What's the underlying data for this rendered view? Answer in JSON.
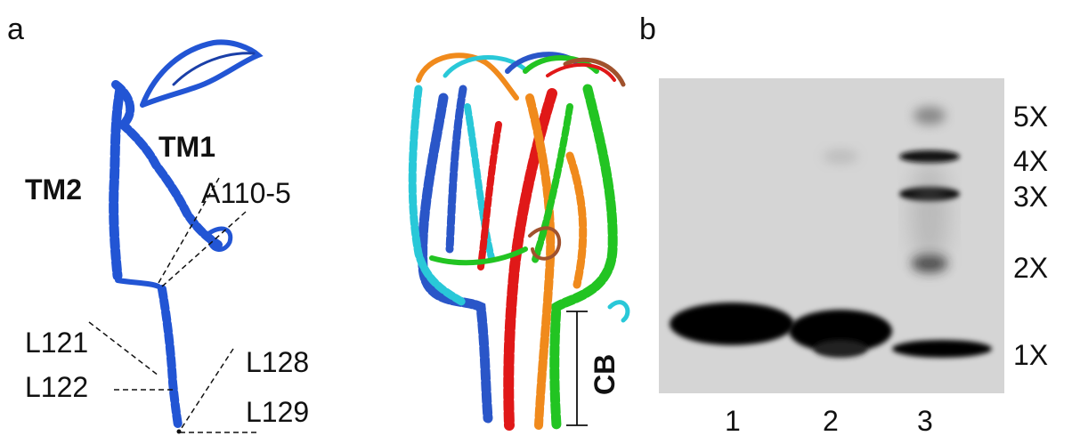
{
  "panel_a": {
    "letter": "a",
    "labels": {
      "tm1": "TM1",
      "tm2": "TM2",
      "a110": "A110-5",
      "l121": "L121",
      "l122": "L122",
      "l128": "L128",
      "l129": "L129",
      "cb": "CB"
    },
    "colors": {
      "monomer": "#2255d4",
      "chain_blue": "#2a56c8",
      "chain_cyan": "#29c8d8",
      "chain_red": "#e01818",
      "chain_orange": "#f08a1c",
      "chain_green": "#22c422",
      "chain_brown": "#a0522d"
    }
  },
  "panel_b": {
    "letter": "b",
    "lane_labels": [
      "1",
      "2",
      "3"
    ],
    "oligomer_labels": [
      "5X",
      "4X",
      "3X",
      "2X",
      "1X"
    ]
  }
}
